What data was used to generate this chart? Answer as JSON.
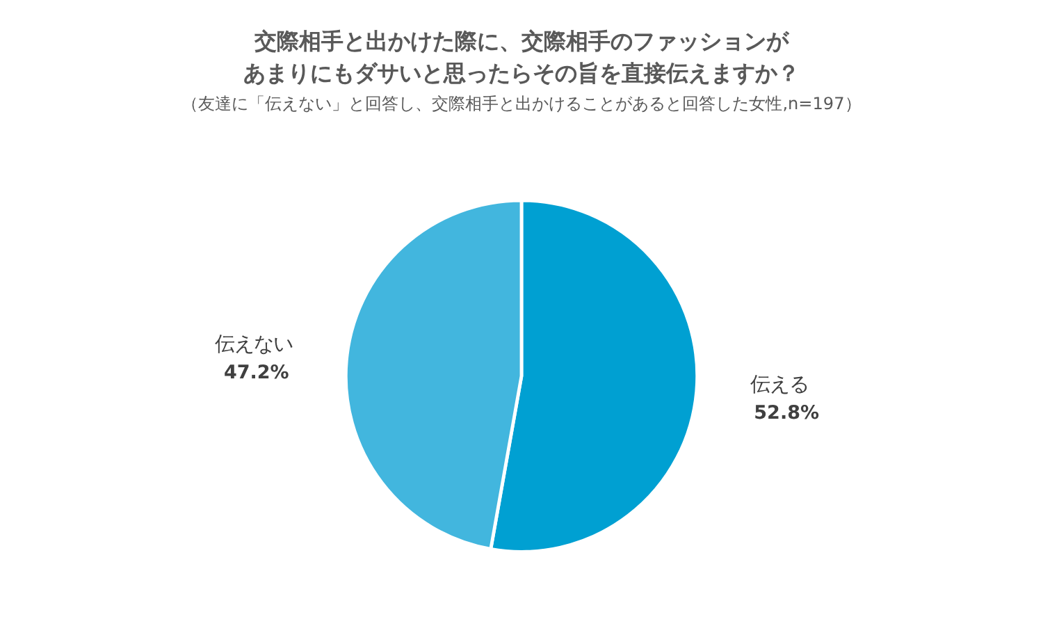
{
  "chart_data": {
    "type": "pie",
    "title": "交際相手と出かけた際に、交際相手のファッションがあまりにもダサいと思ったらその旨を直接伝えますか？",
    "subtitle": "（友達に「伝えない」と回答し、交際相手と出かけることがあると回答した女性,n=197）",
    "categories": [
      "伝える",
      "伝えない"
    ],
    "values": [
      52.8,
      47.2
    ],
    "colors": [
      "#00a0d2",
      "#42b6de"
    ],
    "value_labels": [
      "52.8%",
      "47.2%"
    ],
    "legend": false
  }
}
